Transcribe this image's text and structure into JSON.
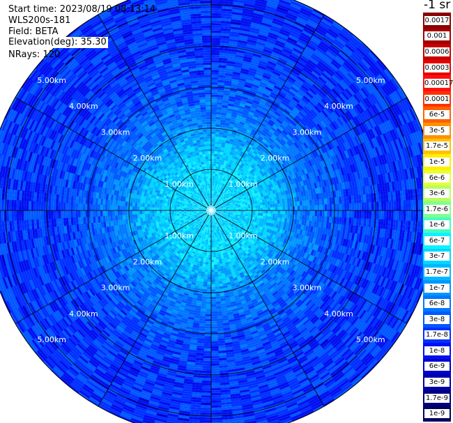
{
  "header": {
    "start_time": "Start time: 2023/08/19 08:13:14",
    "device": "WLS200s-181",
    "field": "Field: BETA",
    "elevation": "Elevation(deg): 35.30",
    "nrays": "NRays: 120"
  },
  "colorbar": {
    "unit": "-1 sr",
    "ticks": [
      "0.0017",
      "0.001",
      "0.0006",
      "0.0003",
      "0.00017",
      "0.0001",
      "6e-5",
      "3e-5",
      "1.7e-5",
      "1e-5",
      "6e-6",
      "3e-6",
      "1.7e-6",
      "1e-6",
      "6e-7",
      "3e-7",
      "1.7e-7",
      "1e-7",
      "6e-8",
      "3e-8",
      "1.7e-8",
      "1e-8",
      "6e-9",
      "3e-9",
      "1.7e-9",
      "1e-9"
    ],
    "colors": [
      "#8b0000",
      "#a50000",
      "#c40000",
      "#e60000",
      "#ff1010",
      "#ff3000",
      "#ff6000",
      "#ff9000",
      "#ffc000",
      "#ffee00",
      "#e8ff30",
      "#b8ff60",
      "#80ff90",
      "#40ffc0",
      "#10f0ff",
      "#00d8ff",
      "#00b8ff",
      "#0098ff",
      "#0078ff",
      "#0058ff",
      "#0030ff",
      "#0010f0",
      "#0000d0",
      "#0000a8",
      "#000080",
      "#000060"
    ]
  },
  "chart_data": {
    "type": "heatmap",
    "projection": "polar",
    "field": "BETA",
    "n_rays": 120,
    "elevation_deg": 35.3,
    "range_rings_km": [
      "1.00km",
      "2.00km",
      "3.00km",
      "4.00km",
      "5.00km"
    ],
    "max_range_km": 5.5,
    "spokes_deg": [
      0,
      30,
      60,
      90,
      120,
      150,
      180,
      210,
      240,
      270,
      300,
      330
    ],
    "radial_profile": [
      {
        "range_km": 0.1,
        "beta": "3e-7"
      },
      {
        "range_km": 1.0,
        "beta": "3e-7"
      },
      {
        "range_km": 1.6,
        "beta": "1.7e-7"
      },
      {
        "range_km": 2.2,
        "beta": "6e-8"
      },
      {
        "range_km": 3.0,
        "beta": "3e-8"
      },
      {
        "range_km": 4.0,
        "beta": "1.7e-8"
      },
      {
        "range_km": 5.0,
        "beta": "1.7e-8"
      }
    ]
  }
}
